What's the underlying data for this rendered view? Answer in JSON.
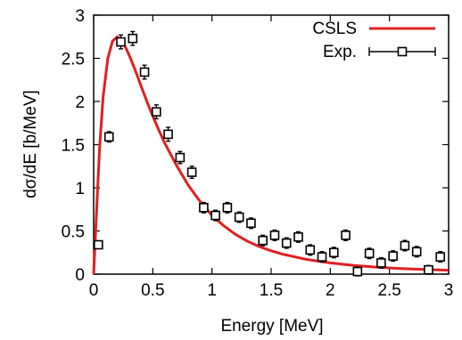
{
  "chart_data": {
    "type": "line",
    "title": "",
    "xlabel": "Energy [MeV]",
    "ylabel": "dσ/dE [b/MeV]",
    "xlim": [
      0,
      3
    ],
    "ylim": [
      0,
      3
    ],
    "x_ticks": [
      "0",
      "0.5",
      "1",
      "1.5",
      "2",
      "2.5",
      "3"
    ],
    "y_ticks": [
      "0",
      "0.5",
      "1",
      "1.5",
      "2",
      "2.5",
      "3"
    ],
    "grid": false,
    "legend_position": "top-right",
    "series": [
      {
        "name": "CSLS",
        "kind": "line",
        "color": "#e02020",
        "x": [
          0.0,
          0.02,
          0.05,
          0.08,
          0.12,
          0.16,
          0.2,
          0.24,
          0.28,
          0.32,
          0.36,
          0.4,
          0.45,
          0.5,
          0.55,
          0.6,
          0.7,
          0.8,
          0.9,
          1.0,
          1.1,
          1.2,
          1.3,
          1.4,
          1.5,
          1.6,
          1.8,
          2.0,
          2.2,
          2.4,
          2.6,
          2.8,
          3.0
        ],
        "y": [
          0.0,
          0.6,
          1.45,
          2.05,
          2.5,
          2.7,
          2.75,
          2.7,
          2.6,
          2.47,
          2.33,
          2.18,
          2.0,
          1.83,
          1.67,
          1.52,
          1.26,
          1.03,
          0.84,
          0.68,
          0.56,
          0.46,
          0.38,
          0.32,
          0.27,
          0.23,
          0.17,
          0.13,
          0.1,
          0.08,
          0.065,
          0.055,
          0.045
        ]
      },
      {
        "name": "Exp.",
        "kind": "points",
        "color": "#000000",
        "x": [
          0.04,
          0.13,
          0.23,
          0.33,
          0.43,
          0.53,
          0.63,
          0.73,
          0.83,
          0.93,
          1.03,
          1.13,
          1.23,
          1.33,
          1.43,
          1.53,
          1.63,
          1.73,
          1.83,
          1.93,
          2.03,
          2.13,
          2.23,
          2.33,
          2.43,
          2.53,
          2.63,
          2.73,
          2.83,
          2.93
        ],
        "y": [
          0.34,
          1.59,
          2.69,
          2.73,
          2.34,
          1.88,
          1.62,
          1.35,
          1.18,
          0.77,
          0.68,
          0.77,
          0.66,
          0.59,
          0.39,
          0.45,
          0.36,
          0.43,
          0.28,
          0.2,
          0.25,
          0.45,
          0.03,
          0.24,
          0.13,
          0.21,
          0.33,
          0.26,
          0.05,
          0.2
        ],
        "err": [
          0.04,
          0.06,
          0.08,
          0.08,
          0.08,
          0.08,
          0.08,
          0.07,
          0.07,
          0.06,
          0.06,
          0.06,
          0.06,
          0.06,
          0.06,
          0.06,
          0.06,
          0.06,
          0.06,
          0.06,
          0.06,
          0.06,
          0.05,
          0.06,
          0.06,
          0.06,
          0.06,
          0.06,
          0.05,
          0.06
        ]
      }
    ]
  }
}
